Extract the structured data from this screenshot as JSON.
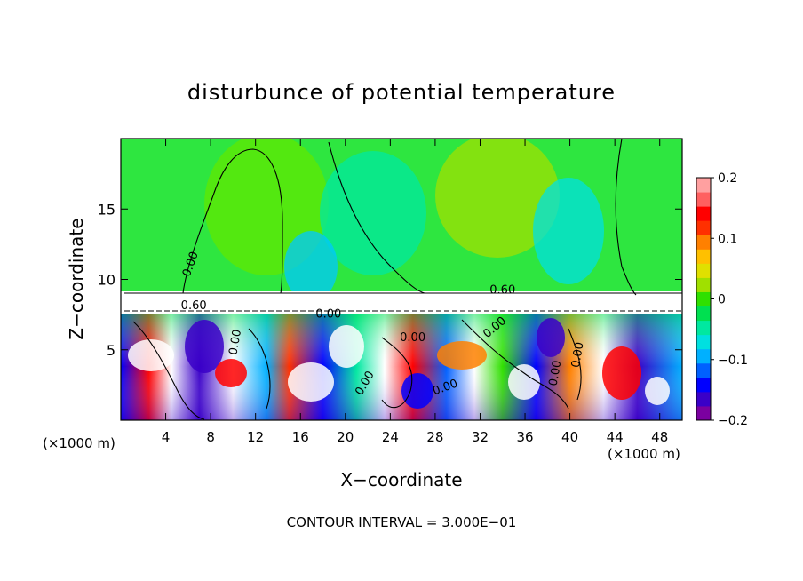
{
  "chart_data": {
    "type": "heatmap",
    "title": "disturbunce of potential temperature",
    "xlabel": "X−coordinate",
    "ylabel": "Z−coordinate",
    "x_unit_left": "(×1000 m)",
    "x_unit_right": "(×1000 m)",
    "footer": "CONTOUR INTERVAL = 3.000E−01",
    "xlim": [
      0,
      50
    ],
    "ylim": [
      0,
      20
    ],
    "x_ticks": [
      4,
      8,
      12,
      16,
      20,
      24,
      28,
      32,
      36,
      40,
      44,
      48
    ],
    "y_ticks": [
      5,
      10,
      15
    ],
    "colorbar": {
      "min": -0.2,
      "max": 0.2,
      "ticks": [
        {
          "value": 0.2,
          "label": "0.2"
        },
        {
          "value": 0.1,
          "label": "0.1"
        },
        {
          "value": 0,
          "label": "0"
        },
        {
          "value": -0.1,
          "label": "−0.1"
        },
        {
          "value": -0.2,
          "label": "−0.2"
        }
      ],
      "colors": [
        "#7b00a0",
        "#3a00c8",
        "#0000ff",
        "#0060ff",
        "#00b0ff",
        "#00e0e0",
        "#00e8a0",
        "#00e050",
        "#30e000",
        "#a0e000",
        "#e0e000",
        "#ffc000",
        "#ff8000",
        "#ff3000",
        "#ff0000",
        "#ff6060",
        "#ffa0a0"
      ]
    },
    "contour_labels": [
      {
        "x": 6.5,
        "z": 11.0,
        "text": "0.00",
        "angle": -70
      },
      {
        "x": 6.5,
        "z": 7.9,
        "text": "0.60",
        "angle": 0
      },
      {
        "x": 34.0,
        "z": 9.0,
        "text": "0.60",
        "angle": 0
      },
      {
        "x": 10.5,
        "z": 5.5,
        "text": "0.00",
        "angle": -80
      },
      {
        "x": 18.5,
        "z": 7.3,
        "text": "0.00",
        "angle": 0
      },
      {
        "x": 26.0,
        "z": 5.6,
        "text": "0.00",
        "angle": 0
      },
      {
        "x": 33.5,
        "z": 6.4,
        "text": "0.00",
        "angle": -40
      },
      {
        "x": 22.0,
        "z": 2.5,
        "text": "0.00",
        "angle": -60
      },
      {
        "x": 29.0,
        "z": 2.1,
        "text": "0.00",
        "angle": -20
      },
      {
        "x": 39.0,
        "z": 3.3,
        "text": "0.00",
        "angle": -80
      },
      {
        "x": 41.0,
        "z": 4.6,
        "text": "0.00",
        "angle": -80
      }
    ]
  }
}
